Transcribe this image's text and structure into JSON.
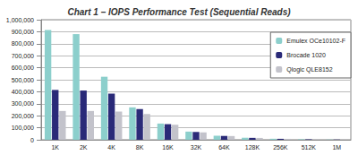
{
  "chart_data": {
    "type": "bar",
    "title": "Chart 1 – IOPS Performance Test (Sequential Reads)",
    "categories": [
      "1K",
      "2K",
      "4K",
      "8K",
      "16K",
      "32K",
      "64K",
      "128K",
      "256K",
      "512K",
      "1M"
    ],
    "series": [
      {
        "name": "Emulex OCe10102-F",
        "color": "#8ccfcc",
        "values": [
          915000,
          880000,
          525000,
          270000,
          135000,
          68000,
          34000,
          17000,
          8500,
          4200,
          2100
        ]
      },
      {
        "name": "Brocade 1020",
        "color": "#2a2a78",
        "values": [
          415000,
          410000,
          385000,
          255000,
          130000,
          65000,
          32000,
          16000,
          8000,
          4000,
          2000
        ]
      },
      {
        "name": "Qlogic QLE8152",
        "color": "#c3c3cb",
        "values": [
          240000,
          240000,
          235000,
          215000,
          125000,
          62000,
          31000,
          15500,
          7800,
          3900,
          1900
        ]
      }
    ],
    "ylim": [
      0,
      1000000
    ],
    "yticks": [
      0,
      {
        "value": 100000,
        "label": "100,000"
      },
      {
        "value": 200000,
        "label": "200,000"
      },
      {
        "value": 300000,
        "label": "300,000"
      },
      {
        "value": 400000,
        "label": "400,000"
      },
      {
        "value": 500000,
        "label": "500,000"
      },
      {
        "value": 600000,
        "label": "600,000"
      },
      {
        "value": 700000,
        "label": "700,000"
      },
      {
        "value": 800000,
        "label": "800,000"
      },
      {
        "value": 900000,
        "label": "900,000"
      },
      {
        "value": 1000000,
        "label": "1,000,000"
      }
    ],
    "grid": true,
    "legend": "right"
  }
}
